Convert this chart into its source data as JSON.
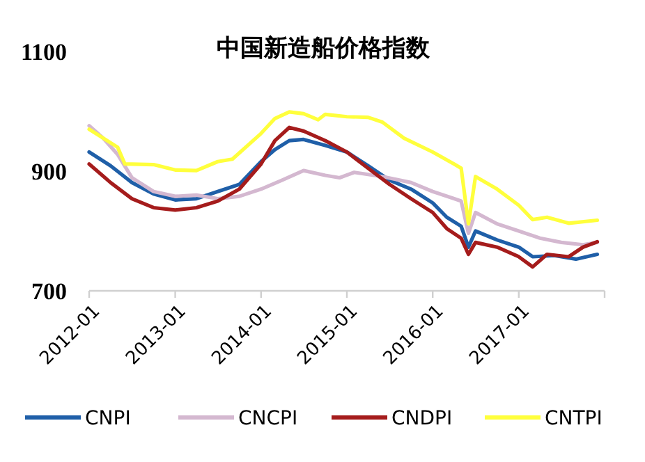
{
  "chart_data": {
    "type": "line",
    "title": "中国新造船价格指数",
    "xlim": [
      "2012-01",
      "2018-01"
    ],
    "xticks": [
      {
        "value": "2012-01",
        "label": "2012-01"
      },
      {
        "value": "2013-01",
        "label": "2013-01"
      },
      {
        "value": "2014-01",
        "label": "2014-01"
      },
      {
        "value": "2015-01",
        "label": "2015-01"
      },
      {
        "value": "2016-01",
        "label": "2016-01"
      },
      {
        "value": "2017-01",
        "label": "2017-01"
      }
    ],
    "ylim": [
      700,
      1100
    ],
    "yticks": [
      700,
      900,
      1100
    ],
    "grid": false,
    "legend": "bottom",
    "marker": "none",
    "line_style": "solid",
    "series": [
      {
        "name": "CNPI",
        "color": "#1f5fa8",
        "x": [
          "2012-01",
          "2012-04",
          "2012-07",
          "2012-10",
          "2013-01",
          "2013-04",
          "2013-07",
          "2013-10",
          "2014-01",
          "2014-03",
          "2014-05",
          "2014-07",
          "2014-10",
          "2015-01",
          "2015-04",
          "2015-07",
          "2015-10",
          "2016-01",
          "2016-03",
          "2016-05",
          "2016-06",
          "2016-07",
          "2016-10",
          "2017-01",
          "2017-03",
          "2017-06",
          "2017-09",
          "2017-12"
        ],
        "values": [
          932,
          909,
          881,
          862,
          852,
          854,
          866,
          878,
          916,
          936,
          951,
          953,
          943,
          932,
          909,
          885,
          870,
          847,
          823,
          808,
          773,
          800,
          785,
          773,
          757,
          759,
          753,
          761
        ]
      },
      {
        "name": "CNCPI",
        "color": "#d4b8d0",
        "x": [
          "2012-01",
          "2012-03",
          "2012-05",
          "2012-07",
          "2012-10",
          "2013-01",
          "2013-04",
          "2013-07",
          "2013-10",
          "2014-01",
          "2014-04",
          "2014-07",
          "2014-10",
          "2014-12",
          "2015-02",
          "2015-06",
          "2015-10",
          "2016-01",
          "2016-04",
          "2016-05",
          "2016-06",
          "2016-07",
          "2016-10",
          "2017-01",
          "2017-04",
          "2017-07",
          "2017-10",
          "2017-12"
        ],
        "values": [
          976,
          955,
          928,
          889,
          866,
          858,
          860,
          854,
          858,
          870,
          885,
          901,
          893,
          889,
          898,
          891,
          881,
          866,
          854,
          850,
          796,
          831,
          812,
          800,
          788,
          781,
          777,
          781
        ]
      },
      {
        "name": "CNDPI",
        "color": "#a51c1c",
        "x": [
          "2012-01",
          "2012-04",
          "2012-07",
          "2012-10",
          "2013-01",
          "2013-04",
          "2013-07",
          "2013-10",
          "2014-01",
          "2014-03",
          "2014-05",
          "2014-07",
          "2014-10",
          "2015-01",
          "2015-04",
          "2015-07",
          "2015-10",
          "2016-01",
          "2016-03",
          "2016-05",
          "2016-06",
          "2016-07",
          "2016-10",
          "2017-01",
          "2017-03",
          "2017-05",
          "2017-08",
          "2017-10",
          "2017-12"
        ],
        "values": [
          912,
          881,
          854,
          839,
          835,
          839,
          850,
          870,
          912,
          951,
          973,
          967,
          951,
          932,
          905,
          878,
          854,
          831,
          804,
          788,
          761,
          781,
          773,
          757,
          740,
          761,
          757,
          773,
          782
        ]
      },
      {
        "name": "CNTPI",
        "color": "#ffff3c",
        "x": [
          "2012-01",
          "2012-05",
          "2012-06",
          "2012-10",
          "2013-01",
          "2013-04",
          "2013-07",
          "2013-09",
          "2014-01",
          "2014-03",
          "2014-05",
          "2014-07",
          "2014-09",
          "2014-10",
          "2015-01",
          "2015-04",
          "2015-06",
          "2015-09",
          "2016-01",
          "2016-04",
          "2016-05",
          "2016-06",
          "2016-07",
          "2016-10",
          "2017-01",
          "2017-03",
          "2017-05",
          "2017-08",
          "2017-12"
        ],
        "values": [
          970,
          940,
          912,
          911,
          902,
          901,
          916,
          920,
          963,
          988,
          999,
          996,
          986,
          995,
          991,
          990,
          982,
          955,
          932,
          912,
          905,
          812,
          891,
          870,
          843,
          819,
          823,
          813,
          818
        ]
      }
    ]
  }
}
